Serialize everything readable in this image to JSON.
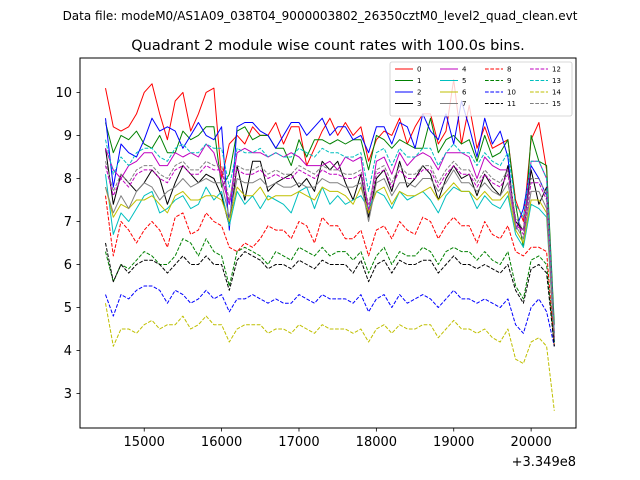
{
  "chart_data": {
    "type": "line",
    "suptitle": "Data file: modeM0/AS1A09_038T04_9000003802_26350cztM0_level2_quad_clean.evt",
    "title": "Quadrant 2 module wise count rates with 100.0s bins.",
    "xlabel": "",
    "ylabel": "",
    "x_offset_label": "+3.349e8",
    "xlim": [
      14170,
      20580
    ],
    "ylim": [
      2.2,
      10.8
    ],
    "xticks": [
      15000,
      16000,
      17000,
      18000,
      19000,
      20000
    ],
    "xtick_labels": [
      "15000",
      "16000",
      "17000",
      "18000",
      "19000",
      "20000"
    ],
    "yticks": [
      3,
      4,
      5,
      6,
      7,
      8,
      9,
      10
    ],
    "ytick_labels": [
      "3",
      "4",
      "5",
      "6",
      "7",
      "8",
      "9",
      "10"
    ],
    "x": [
      14500,
      14600,
      14700,
      14800,
      14900,
      15000,
      15100,
      15200,
      15300,
      15400,
      15500,
      15600,
      15700,
      15800,
      15900,
      16000,
      16100,
      16200,
      16300,
      16400,
      16500,
      16600,
      16700,
      16800,
      16900,
      17000,
      17100,
      17200,
      17300,
      17400,
      17500,
      17600,
      17700,
      17800,
      17900,
      18000,
      18100,
      18200,
      18300,
      18400,
      18500,
      18600,
      18700,
      18800,
      18900,
      19000,
      19100,
      19200,
      19300,
      19400,
      19500,
      19600,
      19700,
      19800,
      19900,
      20000,
      20100,
      20200,
      20300
    ],
    "legend": {
      "location": "upper right",
      "ncol": 4
    },
    "series": [
      {
        "name": "0",
        "color": "#ff0000",
        "dash": "solid",
        "values": [
          10.1,
          9.2,
          9.1,
          9.2,
          9.5,
          10.0,
          10.2,
          9.5,
          8.9,
          9.8,
          10.0,
          9.1,
          9.5,
          10.0,
          10.1,
          8.0,
          8.8,
          9.0,
          8.8,
          9.2,
          9.0,
          9.0,
          9.3,
          8.8,
          9.2,
          9.2,
          8.3,
          8.7,
          9.1,
          9.4,
          9.0,
          9.3,
          9.0,
          9.2,
          8.4,
          8.9,
          9.1,
          9.0,
          9.4,
          8.8,
          9.2,
          9.5,
          9.5,
          8.8,
          9.1,
          10.3,
          8.8,
          9.7,
          8.7,
          9.2,
          8.7,
          8.8,
          8.9,
          7.5,
          7.0,
          8.9,
          9.3,
          8.2,
          4.4
        ]
      },
      {
        "name": "1",
        "color": "#008000",
        "dash": "solid",
        "values": [
          9.3,
          8.6,
          9.0,
          8.9,
          9.1,
          8.8,
          8.7,
          9.0,
          8.6,
          8.6,
          9.1,
          8.9,
          9.0,
          9.2,
          9.2,
          7.8,
          8.1,
          9.1,
          9.2,
          8.9,
          9.0,
          9.0,
          8.7,
          8.7,
          8.3,
          8.9,
          8.5,
          8.9,
          8.9,
          8.8,
          8.9,
          8.8,
          8.9,
          8.9,
          8.2,
          9.0,
          8.9,
          8.7,
          8.9,
          8.8,
          8.7,
          8.7,
          9.4,
          8.6,
          8.9,
          9.0,
          8.8,
          8.9,
          8.4,
          9.0,
          8.5,
          8.6,
          8.9,
          7.4,
          6.4,
          9.0,
          8.4,
          8.3,
          4.6
        ]
      },
      {
        "name": "2",
        "color": "#0000ff",
        "dash": "solid",
        "values": [
          9.4,
          7.8,
          8.8,
          8.6,
          8.5,
          8.9,
          9.4,
          9.1,
          9.2,
          9.1,
          8.7,
          9.0,
          9.3,
          9.0,
          8.9,
          9.2,
          6.8,
          9.2,
          9.3,
          9.3,
          9.1,
          9.0,
          8.7,
          9.0,
          9.3,
          9.3,
          9.0,
          9.2,
          9.4,
          9.0,
          9.2,
          9.2,
          8.9,
          9.0,
          8.6,
          9.2,
          9.2,
          8.8,
          9.3,
          9.2,
          8.7,
          9.5,
          9.1,
          8.9,
          9.5,
          8.8,
          9.8,
          9.2,
          8.5,
          9.4,
          8.8,
          9.1,
          8.5,
          6.8,
          7.3,
          8.3,
          8.0,
          7.6,
          4.2
        ]
      },
      {
        "name": "3",
        "color": "#000000",
        "dash": "solid",
        "values": [
          8.7,
          7.4,
          8.1,
          7.9,
          7.7,
          7.9,
          8.2,
          8.0,
          7.4,
          7.9,
          8.3,
          8.1,
          7.9,
          8.1,
          8.0,
          7.6,
          6.9,
          8.3,
          7.5,
          8.4,
          8.4,
          7.7,
          7.9,
          8.0,
          8.1,
          7.8,
          8.0,
          7.7,
          8.4,
          8.2,
          8.4,
          7.9,
          7.5,
          8.1,
          7.1,
          8.0,
          8.2,
          7.7,
          8.4,
          7.8,
          8.0,
          8.3,
          8.1,
          7.5,
          8.0,
          8.3,
          8.0,
          8.1,
          7.6,
          8.1,
          7.8,
          7.6,
          8.3,
          7.0,
          6.8,
          8.2,
          7.4,
          7.8,
          4.2
        ]
      },
      {
        "name": "4",
        "color": "#bf00bf",
        "dash": "solid",
        "values": [
          8.7,
          8.2,
          8.0,
          8.3,
          8.4,
          8.6,
          8.6,
          8.3,
          8.3,
          8.6,
          8.5,
          8.6,
          8.5,
          8.8,
          8.6,
          8.0,
          7.4,
          8.6,
          8.7,
          8.6,
          8.6,
          8.5,
          8.6,
          8.5,
          8.6,
          8.5,
          8.3,
          8.3,
          8.3,
          8.4,
          8.2,
          8.5,
          8.4,
          8.5,
          7.2,
          8.4,
          8.5,
          8.1,
          8.6,
          8.3,
          8.5,
          8.6,
          8.5,
          8.2,
          8.6,
          8.6,
          8.6,
          8.5,
          8.0,
          8.5,
          8.3,
          8.2,
          8.2,
          6.9,
          6.8,
          8.4,
          8.4,
          8.0,
          4.4
        ]
      },
      {
        "name": "5",
        "color": "#00bfbf",
        "dash": "solid",
        "values": [
          8.1,
          6.7,
          7.2,
          7.0,
          7.3,
          7.6,
          7.7,
          7.2,
          7.3,
          7.5,
          7.6,
          7.3,
          7.4,
          7.8,
          7.5,
          7.7,
          6.9,
          7.7,
          7.4,
          7.6,
          7.3,
          7.6,
          7.5,
          7.4,
          7.2,
          7.7,
          7.8,
          7.3,
          7.8,
          7.4,
          7.6,
          7.4,
          7.5,
          7.6,
          7.3,
          7.7,
          7.6,
          7.3,
          7.7,
          7.5,
          7.6,
          7.7,
          7.5,
          7.2,
          7.6,
          7.8,
          7.7,
          7.7,
          7.3,
          7.6,
          7.4,
          7.3,
          7.6,
          6.7,
          6.4,
          7.4,
          7.3,
          7.1,
          4.2
        ]
      },
      {
        "name": "6",
        "color": "#bfbf00",
        "dash": "solid",
        "values": [
          7.8,
          7.1,
          7.4,
          7.3,
          7.5,
          7.5,
          7.6,
          7.4,
          7.2,
          7.6,
          7.7,
          7.5,
          7.5,
          7.6,
          7.6,
          7.5,
          7.0,
          7.8,
          7.6,
          7.6,
          7.8,
          7.5,
          7.6,
          7.6,
          7.6,
          7.7,
          7.6,
          7.5,
          7.8,
          7.7,
          7.7,
          7.6,
          7.4,
          7.8,
          7.2,
          7.7,
          7.8,
          7.4,
          7.7,
          7.6,
          7.6,
          7.7,
          7.8,
          7.5,
          7.7,
          7.9,
          7.7,
          7.7,
          7.5,
          7.7,
          7.5,
          7.5,
          7.7,
          6.8,
          6.5,
          7.5,
          7.5,
          7.2,
          4.3
        ]
      },
      {
        "name": "7",
        "color": "#808080",
        "dash": "solid",
        "values": [
          7.8,
          7.2,
          7.6,
          7.3,
          7.7,
          7.9,
          7.8,
          7.5,
          7.7,
          7.8,
          8.0,
          7.8,
          7.9,
          8.0,
          7.9,
          7.9,
          7.1,
          8.0,
          7.9,
          7.9,
          8.0,
          7.8,
          7.9,
          7.8,
          7.8,
          7.9,
          7.8,
          7.8,
          8.0,
          7.9,
          7.9,
          7.8,
          7.8,
          7.9,
          7.0,
          7.9,
          8.0,
          7.6,
          7.9,
          7.9,
          7.8,
          8.0,
          8.0,
          7.7,
          7.9,
          8.2,
          7.9,
          7.9,
          7.7,
          7.9,
          7.7,
          7.6,
          7.9,
          6.9,
          6.6,
          7.7,
          7.7,
          7.3,
          4.3
        ]
      },
      {
        "name": "8",
        "color": "#ff0000",
        "dash": "dashed",
        "values": [
          7.6,
          6.2,
          7.0,
          6.8,
          6.5,
          6.8,
          7.0,
          6.8,
          6.4,
          7.1,
          7.2,
          6.7,
          6.8,
          7.2,
          7.0,
          6.9,
          6.4,
          6.3,
          6.5,
          6.4,
          6.6,
          6.9,
          6.8,
          6.8,
          6.6,
          7.0,
          6.9,
          6.5,
          7.1,
          6.9,
          6.9,
          6.6,
          6.6,
          6.8,
          6.2,
          6.8,
          6.9,
          6.6,
          7.0,
          6.8,
          6.7,
          7.1,
          7.0,
          6.6,
          6.9,
          7.1,
          6.9,
          6.9,
          6.5,
          7.0,
          6.7,
          6.6,
          6.9,
          6.3,
          6.2,
          6.4,
          6.4,
          6.3,
          4.1
        ]
      },
      {
        "name": "9",
        "color": "#008000",
        "dash": "dashed",
        "values": [
          6.3,
          5.6,
          6.0,
          5.9,
          6.1,
          6.3,
          6.2,
          6.0,
          6.0,
          6.2,
          6.6,
          6.5,
          6.2,
          6.6,
          6.3,
          6.2,
          5.5,
          6.3,
          6.4,
          6.3,
          6.2,
          6.0,
          6.3,
          6.2,
          6.1,
          6.4,
          6.3,
          6.2,
          6.4,
          6.2,
          6.3,
          6.3,
          6.1,
          6.3,
          5.8,
          6.2,
          6.4,
          6.0,
          6.3,
          6.2,
          6.2,
          6.4,
          6.3,
          6.0,
          6.3,
          6.4,
          6.3,
          6.3,
          6.1,
          6.3,
          6.1,
          6.0,
          6.3,
          5.5,
          5.2,
          6.1,
          6.2,
          6.0,
          4.1
        ]
      },
      {
        "name": "10",
        "color": "#0000ff",
        "dash": "dashed",
        "values": [
          5.3,
          4.8,
          5.3,
          5.2,
          5.4,
          5.5,
          5.5,
          5.4,
          5.1,
          5.4,
          5.3,
          5.1,
          5.2,
          5.4,
          5.2,
          5.3,
          4.9,
          5.2,
          5.2,
          5.3,
          5.2,
          5.1,
          5.2,
          5.1,
          5.1,
          5.3,
          5.2,
          5.1,
          5.3,
          5.2,
          5.2,
          5.2,
          5.1,
          5.3,
          4.9,
          5.2,
          5.3,
          5.0,
          5.3,
          5.1,
          5.2,
          5.3,
          5.2,
          5.0,
          5.2,
          5.4,
          5.2,
          5.2,
          5.1,
          5.2,
          5.1,
          5.0,
          5.2,
          4.6,
          4.4,
          5.0,
          5.2,
          4.9,
          4.1
        ]
      },
      {
        "name": "11",
        "color": "#000000",
        "dash": "dashed",
        "values": [
          6.5,
          5.6,
          6.0,
          5.8,
          6.0,
          6.1,
          6.1,
          6.0,
          5.8,
          6.0,
          6.2,
          6.0,
          6.0,
          6.2,
          6.0,
          6.0,
          5.4,
          6.1,
          6.3,
          6.2,
          6.1,
          5.9,
          6.0,
          6.0,
          5.9,
          6.1,
          6.0,
          5.9,
          6.1,
          6.0,
          6.0,
          6.0,
          5.8,
          6.1,
          5.6,
          6.0,
          6.1,
          5.8,
          6.1,
          6.0,
          6.0,
          6.1,
          6.1,
          5.8,
          6.0,
          6.2,
          6.0,
          6.0,
          5.9,
          6.0,
          5.9,
          5.8,
          6.0,
          5.4,
          5.1,
          5.9,
          6.0,
          5.8,
          4.1
        ]
      },
      {
        "name": "12",
        "color": "#bf00bf",
        "dash": "dashed",
        "values": [
          8.3,
          7.6,
          8.0,
          7.8,
          8.1,
          8.2,
          8.2,
          8.0,
          7.9,
          8.2,
          8.3,
          8.1,
          8.1,
          8.3,
          8.2,
          8.2,
          7.4,
          8.2,
          8.1,
          8.1,
          8.2,
          8.0,
          8.1,
          8.0,
          8.0,
          8.2,
          8.1,
          8.0,
          8.2,
          8.1,
          8.1,
          8.0,
          8.0,
          8.1,
          7.3,
          8.1,
          8.2,
          7.8,
          8.2,
          8.0,
          8.0,
          8.2,
          8.2,
          7.8,
          8.1,
          8.3,
          8.1,
          8.1,
          7.8,
          8.1,
          7.9,
          7.8,
          8.1,
          7.0,
          6.7,
          7.9,
          7.9,
          7.5,
          4.3
        ]
      },
      {
        "name": "13",
        "color": "#00bfbf",
        "dash": "dashed",
        "values": [
          8.9,
          8.1,
          8.5,
          8.3,
          8.6,
          8.7,
          8.7,
          8.5,
          8.4,
          8.7,
          8.8,
          8.6,
          8.6,
          8.8,
          8.7,
          8.7,
          7.8,
          8.7,
          8.6,
          8.6,
          8.7,
          8.5,
          8.6,
          8.5,
          8.5,
          8.7,
          8.6,
          8.5,
          8.7,
          8.6,
          8.6,
          8.5,
          8.5,
          8.6,
          7.7,
          8.6,
          8.7,
          8.3,
          8.7,
          8.5,
          8.5,
          8.7,
          8.7,
          8.3,
          8.6,
          8.8,
          8.6,
          8.6,
          8.3,
          8.6,
          8.4,
          8.3,
          8.6,
          7.4,
          7.1,
          8.4,
          8.4,
          8.0,
          4.4
        ]
      },
      {
        "name": "14",
        "color": "#bfbf00",
        "dash": "dashed",
        "values": [
          5.1,
          4.1,
          4.5,
          4.5,
          4.4,
          4.6,
          4.7,
          4.5,
          4.6,
          4.6,
          4.8,
          4.5,
          4.6,
          4.8,
          4.6,
          4.6,
          4.2,
          4.5,
          4.6,
          4.6,
          4.6,
          4.4,
          4.5,
          4.5,
          4.4,
          4.6,
          4.5,
          4.4,
          4.6,
          4.5,
          4.5,
          4.5,
          4.4,
          4.5,
          4.2,
          4.5,
          4.6,
          4.4,
          4.6,
          4.5,
          4.5,
          4.6,
          4.6,
          4.3,
          4.5,
          4.7,
          4.5,
          4.5,
          4.4,
          4.5,
          4.3,
          4.2,
          4.5,
          3.8,
          3.7,
          4.2,
          4.3,
          4.1,
          2.6
        ]
      },
      {
        "name": "15",
        "color": "#808080",
        "dash": "dashed",
        "values": [
          8.4,
          7.7,
          8.1,
          7.9,
          8.2,
          8.3,
          8.3,
          8.1,
          8.0,
          8.3,
          8.4,
          8.2,
          8.2,
          8.4,
          8.3,
          8.3,
          7.5,
          8.3,
          8.2,
          8.2,
          8.3,
          8.1,
          8.2,
          8.1,
          8.1,
          8.3,
          8.2,
          8.1,
          8.3,
          8.2,
          8.2,
          8.1,
          8.1,
          8.2,
          7.4,
          8.2,
          8.3,
          7.9,
          8.3,
          8.1,
          8.1,
          8.3,
          8.3,
          7.9,
          8.2,
          8.4,
          8.2,
          8.2,
          7.9,
          8.2,
          8.0,
          7.9,
          8.2,
          7.1,
          6.8,
          8.0,
          8.0,
          7.6,
          4.3
        ]
      }
    ]
  }
}
